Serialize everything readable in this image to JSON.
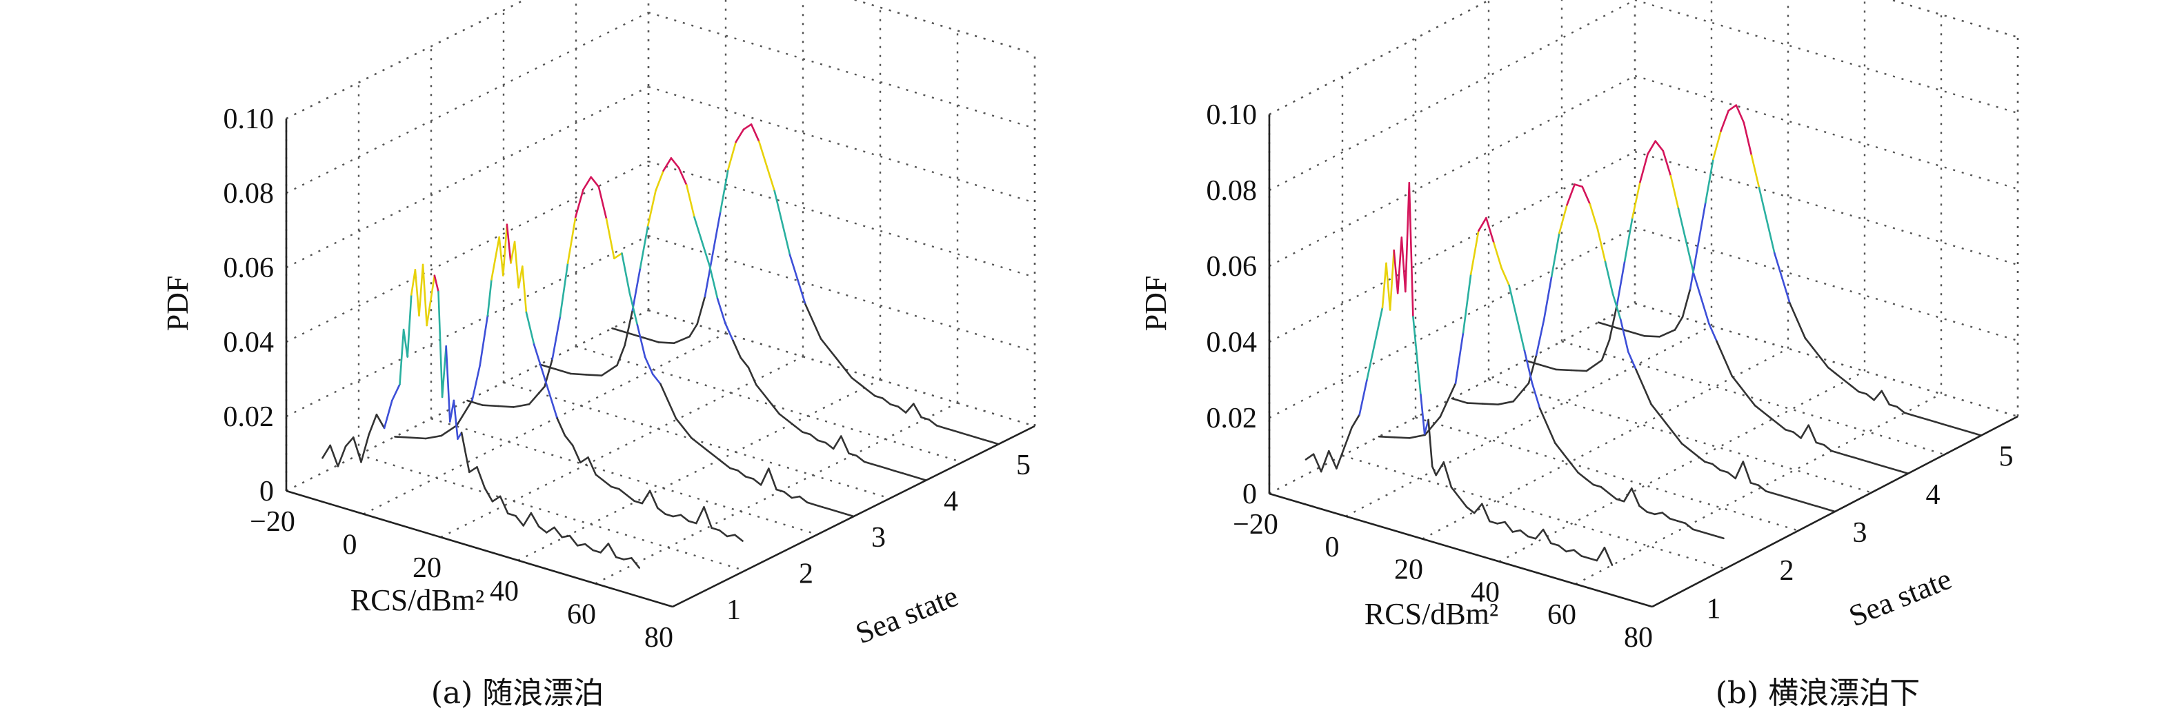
{
  "charts": [
    {
      "type": "line",
      "caption": "(a) 随浪漂泊",
      "xlabel": "RCS/dBm²",
      "ylabel": "PDF",
      "zlabel": "Sea state",
      "x_ticks": [
        "−20",
        "0",
        "20",
        "40",
        "60",
        "80"
      ],
      "y_ticks": [
        "0",
        "0.02",
        "0.04",
        "0.06",
        "0.08",
        "0.10"
      ],
      "z_ticks": [
        "1",
        "2",
        "3",
        "4",
        "5"
      ],
      "xlim": [
        -20,
        80
      ],
      "ylim": [
        0,
        0.1
      ],
      "zlim": [
        0.5,
        5.5
      ],
      "grid": true,
      "series": [
        {
          "sea_state": 1,
          "x": [
            -20,
            -18,
            -16,
            -14,
            -12,
            -10,
            -8,
            -6,
            -4,
            -2,
            0,
            1,
            2,
            3,
            4,
            5,
            6,
            7,
            8,
            9,
            10,
            11,
            12,
            13,
            14,
            15,
            16,
            18,
            20,
            22,
            24,
            26,
            28,
            30,
            32,
            34,
            36,
            38,
            40,
            42,
            44,
            46,
            48,
            50,
            52,
            54,
            56,
            58,
            60,
            62
          ],
          "y": [
            0.004,
            0.008,
            0.003,
            0.009,
            0.012,
            0.006,
            0.014,
            0.02,
            0.017,
            0.025,
            0.03,
            0.045,
            0.038,
            0.055,
            0.062,
            0.05,
            0.064,
            0.048,
            0.055,
            0.062,
            0.058,
            0.03,
            0.044,
            0.024,
            0.03,
            0.02,
            0.022,
            0.012,
            0.014,
            0.009,
            0.006,
            0.008,
            0.004,
            0.004,
            0.002,
            0.006,
            0.003,
            0.002,
            0.004,
            0.002,
            0.003,
            0.001,
            0.002,
            0.001,
            0.001,
            0.004,
            0.001,
            0.001,
            0.002,
            0.0
          ]
        },
        {
          "sea_state": 2,
          "x": [
            -20,
            -16,
            -12,
            -8,
            -4,
            0,
            2,
            4,
            5,
            6,
            7,
            8,
            9,
            10,
            11,
            12,
            13,
            14,
            16,
            18,
            20,
            22,
            24,
            26,
            28,
            30,
            32,
            34,
            36,
            38,
            40,
            42,
            44,
            46,
            48,
            50,
            52,
            54,
            56,
            58,
            60,
            62,
            64,
            66,
            68,
            70
          ],
          "y": [
            0.0,
            0.001,
            0.002,
            0.004,
            0.008,
            0.016,
            0.026,
            0.04,
            0.05,
            0.056,
            0.062,
            0.052,
            0.066,
            0.056,
            0.062,
            0.05,
            0.056,
            0.044,
            0.036,
            0.03,
            0.024,
            0.018,
            0.014,
            0.012,
            0.008,
            0.01,
            0.006,
            0.005,
            0.004,
            0.004,
            0.003,
            0.002,
            0.002,
            0.006,
            0.002,
            0.001,
            0.001,
            0.002,
            0.001,
            0.001,
            0.006,
            0.001,
            0.001,
            0.0,
            0.001,
            0.0
          ]
        },
        {
          "sea_state": 3,
          "x": [
            -20,
            -16,
            -12,
            -8,
            -4,
            0,
            2,
            4,
            6,
            8,
            10,
            12,
            14,
            16,
            18,
            20,
            22,
            24,
            26,
            28,
            30,
            32,
            34,
            36,
            38,
            40,
            42,
            44,
            46,
            48,
            50,
            52,
            54,
            56,
            58,
            60,
            62,
            64,
            66,
            68,
            70,
            72,
            74,
            76,
            78,
            80
          ],
          "y": [
            0.0,
            0.0,
            0.001,
            0.002,
            0.004,
            0.01,
            0.018,
            0.03,
            0.045,
            0.058,
            0.066,
            0.07,
            0.068,
            0.06,
            0.05,
            0.052,
            0.042,
            0.034,
            0.026,
            0.022,
            0.02,
            0.016,
            0.012,
            0.01,
            0.008,
            0.007,
            0.006,
            0.005,
            0.004,
            0.003,
            0.003,
            0.002,
            0.002,
            0.001,
            0.006,
            0.001,
            0.001,
            0.0,
            0.001,
            0.0,
            0.0,
            0.0,
            0.0,
            0.0,
            0.0,
            0.0
          ]
        },
        {
          "sea_state": 4,
          "x": [
            -20,
            -16,
            -12,
            -8,
            -4,
            0,
            2,
            4,
            6,
            8,
            10,
            12,
            14,
            16,
            18,
            20,
            22,
            24,
            26,
            28,
            30,
            32,
            34,
            36,
            38,
            40,
            42,
            44,
            46,
            48,
            50,
            52,
            54,
            56,
            58,
            60,
            62,
            64,
            66,
            68,
            70,
            72,
            74,
            76,
            78,
            80
          ],
          "y": [
            0.0,
            0.0,
            0.0,
            0.001,
            0.002,
            0.006,
            0.012,
            0.022,
            0.034,
            0.046,
            0.056,
            0.062,
            0.066,
            0.064,
            0.06,
            0.052,
            0.046,
            0.04,
            0.032,
            0.026,
            0.022,
            0.018,
            0.016,
            0.012,
            0.01,
            0.008,
            0.006,
            0.005,
            0.004,
            0.003,
            0.003,
            0.002,
            0.002,
            0.001,
            0.005,
            0.001,
            0.001,
            0.0,
            0.0,
            0.0,
            0.0,
            0.0,
            0.0,
            0.0,
            0.0,
            0.0
          ]
        },
        {
          "sea_state": 5,
          "x": [
            -20,
            -16,
            -12,
            -8,
            -4,
            0,
            2,
            4,
            6,
            8,
            10,
            12,
            14,
            16,
            18,
            20,
            22,
            24,
            26,
            28,
            30,
            32,
            34,
            36,
            38,
            40,
            42,
            44,
            46,
            48,
            50,
            52,
            54,
            56,
            58,
            60,
            62,
            64,
            66,
            68,
            70,
            72,
            74,
            76,
            78,
            80
          ],
          "y": [
            0.0,
            0.0,
            0.0,
            0.0,
            0.001,
            0.004,
            0.008,
            0.016,
            0.028,
            0.04,
            0.052,
            0.06,
            0.064,
            0.066,
            0.062,
            0.056,
            0.05,
            0.042,
            0.034,
            0.028,
            0.022,
            0.018,
            0.014,
            0.012,
            0.01,
            0.008,
            0.006,
            0.005,
            0.004,
            0.003,
            0.003,
            0.002,
            0.002,
            0.001,
            0.004,
            0.001,
            0.001,
            0.0,
            0.0,
            0.0,
            0.0,
            0.0,
            0.0,
            0.0,
            0.0,
            0.0
          ]
        }
      ]
    },
    {
      "type": "line",
      "caption": "(b) 横浪漂泊下",
      "xlabel": "RCS/dBm²",
      "ylabel": "PDF",
      "zlabel": "Sea state",
      "x_ticks": [
        "−20",
        "0",
        "20",
        "40",
        "60",
        "80"
      ],
      "y_ticks": [
        "0",
        "0.02",
        "0.04",
        "0.06",
        "0.08",
        "0.10"
      ],
      "z_ticks": [
        "1",
        "2",
        "3",
        "4",
        "5"
      ],
      "xlim": [
        -20,
        80
      ],
      "ylim": [
        0,
        0.1
      ],
      "zlim": [
        0.5,
        5.5
      ],
      "grid": true,
      "series": [
        {
          "sea_state": 1,
          "x": [
            -20,
            -18,
            -16,
            -14,
            -12,
            -10,
            -8,
            -6,
            -4,
            -2,
            0,
            1,
            2,
            3,
            4,
            5,
            6,
            7,
            8,
            9,
            10,
            11,
            12,
            13,
            14,
            16,
            18,
            20,
            22,
            24,
            26,
            28,
            30,
            32,
            34,
            36,
            38,
            40,
            42,
            44,
            46,
            48,
            50,
            52,
            54,
            56,
            58,
            60
          ],
          "y": [
            0.004,
            0.006,
            0.002,
            0.008,
            0.004,
            0.01,
            0.016,
            0.02,
            0.03,
            0.04,
            0.05,
            0.062,
            0.05,
            0.066,
            0.055,
            0.07,
            0.056,
            0.085,
            0.05,
            0.04,
            0.03,
            0.02,
            0.024,
            0.012,
            0.01,
            0.014,
            0.008,
            0.006,
            0.004,
            0.003,
            0.006,
            0.002,
            0.002,
            0.003,
            0.001,
            0.002,
            0.001,
            0.001,
            0.004,
            0.001,
            0.001,
            0.0,
            0.001,
            0.0,
            0.0,
            0.0,
            0.004,
            0.0
          ]
        },
        {
          "sea_state": 2,
          "x": [
            -20,
            -16,
            -12,
            -8,
            -4,
            0,
            2,
            4,
            6,
            8,
            10,
            12,
            14,
            16,
            18,
            20,
            22,
            24,
            26,
            28,
            30,
            32,
            34,
            36,
            38,
            40,
            42,
            44,
            46,
            48,
            50,
            52,
            54,
            56,
            58,
            60,
            62,
            64,
            66,
            68,
            70
          ],
          "y": [
            0.0,
            0.001,
            0.002,
            0.004,
            0.01,
            0.02,
            0.034,
            0.05,
            0.062,
            0.066,
            0.06,
            0.054,
            0.05,
            0.042,
            0.034,
            0.026,
            0.02,
            0.016,
            0.012,
            0.01,
            0.008,
            0.006,
            0.005,
            0.004,
            0.004,
            0.003,
            0.002,
            0.002,
            0.006,
            0.002,
            0.001,
            0.001,
            0.002,
            0.001,
            0.001,
            0.001,
            0.0,
            0.0,
            0.0,
            0.0,
            0.0
          ]
        },
        {
          "sea_state": 3,
          "x": [
            -20,
            -16,
            -12,
            -8,
            -4,
            0,
            2,
            4,
            6,
            8,
            10,
            12,
            14,
            16,
            18,
            20,
            22,
            24,
            26,
            28,
            30,
            32,
            34,
            36,
            38,
            40,
            42,
            44,
            46,
            48,
            50,
            52,
            54,
            56,
            58,
            60,
            62,
            64,
            66,
            68,
            70,
            72,
            74,
            76,
            78,
            80
          ],
          "y": [
            0.0,
            0.0,
            0.001,
            0.002,
            0.004,
            0.01,
            0.018,
            0.028,
            0.04,
            0.052,
            0.06,
            0.066,
            0.066,
            0.062,
            0.056,
            0.048,
            0.04,
            0.034,
            0.026,
            0.022,
            0.018,
            0.014,
            0.012,
            0.01,
            0.008,
            0.006,
            0.005,
            0.004,
            0.003,
            0.003,
            0.002,
            0.002,
            0.001,
            0.006,
            0.001,
            0.001,
            0.0,
            0.0,
            0.0,
            0.0,
            0.0,
            0.0,
            0.0,
            0.0,
            0.0,
            0.0
          ]
        },
        {
          "sea_state": 4,
          "x": [
            -20,
            -16,
            -12,
            -8,
            -4,
            0,
            2,
            4,
            6,
            8,
            10,
            12,
            14,
            16,
            18,
            20,
            22,
            24,
            26,
            28,
            30,
            32,
            34,
            36,
            38,
            40,
            42,
            44,
            46,
            48,
            50,
            52,
            54,
            56,
            58,
            60,
            62,
            64,
            66,
            68,
            70,
            72,
            74,
            76,
            78,
            80
          ],
          "y": [
            0.0,
            0.0,
            0.0,
            0.001,
            0.002,
            0.006,
            0.012,
            0.022,
            0.034,
            0.046,
            0.056,
            0.064,
            0.068,
            0.066,
            0.06,
            0.052,
            0.044,
            0.036,
            0.03,
            0.024,
            0.02,
            0.016,
            0.012,
            0.01,
            0.008,
            0.006,
            0.005,
            0.004,
            0.003,
            0.002,
            0.002,
            0.001,
            0.005,
            0.001,
            0.001,
            0.0,
            0.0,
            0.0,
            0.0,
            0.0,
            0.0,
            0.0,
            0.0,
            0.0,
            0.0,
            0.0
          ]
        },
        {
          "sea_state": 5,
          "x": [
            -20,
            -16,
            -12,
            -8,
            -4,
            0,
            2,
            4,
            6,
            8,
            10,
            12,
            14,
            16,
            18,
            20,
            22,
            24,
            26,
            28,
            30,
            32,
            34,
            36,
            38,
            40,
            42,
            44,
            46,
            48,
            50,
            52,
            54,
            56,
            58,
            60,
            62,
            64,
            66,
            68,
            70,
            72,
            74,
            76,
            78,
            80
          ],
          "y": [
            0.0,
            0.0,
            0.0,
            0.0,
            0.001,
            0.004,
            0.008,
            0.016,
            0.028,
            0.04,
            0.052,
            0.06,
            0.066,
            0.068,
            0.064,
            0.056,
            0.048,
            0.04,
            0.032,
            0.026,
            0.02,
            0.016,
            0.012,
            0.01,
            0.008,
            0.006,
            0.005,
            0.004,
            0.003,
            0.002,
            0.002,
            0.001,
            0.004,
            0.001,
            0.001,
            0.0,
            0.0,
            0.0,
            0.0,
            0.0,
            0.0,
            0.0,
            0.0,
            0.0,
            0.0,
            0.0
          ]
        }
      ]
    }
  ],
  "chart_data": [
    {
      "type": "line",
      "title": "(a) 随浪漂泊",
      "xlabel": "RCS/dBm²",
      "ylabel": "PDF",
      "zlabel": "Sea state",
      "xlim": [
        -20,
        80
      ],
      "ylim": [
        0,
        0.1
      ],
      "zlim": [
        0.5,
        5.5
      ],
      "grid": true
    },
    {
      "type": "line",
      "title": "(b) 横浪漂泊下",
      "xlabel": "RCS/dBm²",
      "ylabel": "PDF",
      "zlabel": "Sea state",
      "xlim": [
        -20,
        80
      ],
      "ylim": [
        0,
        0.1
      ],
      "zlim": [
        0.5,
        5.5
      ],
      "grid": true
    }
  ],
  "colors": {
    "high": "#d4145a",
    "upper": "#e8d20a",
    "mid": "#2ab0a0",
    "low": "#3d4fd8",
    "base": "#333333"
  }
}
